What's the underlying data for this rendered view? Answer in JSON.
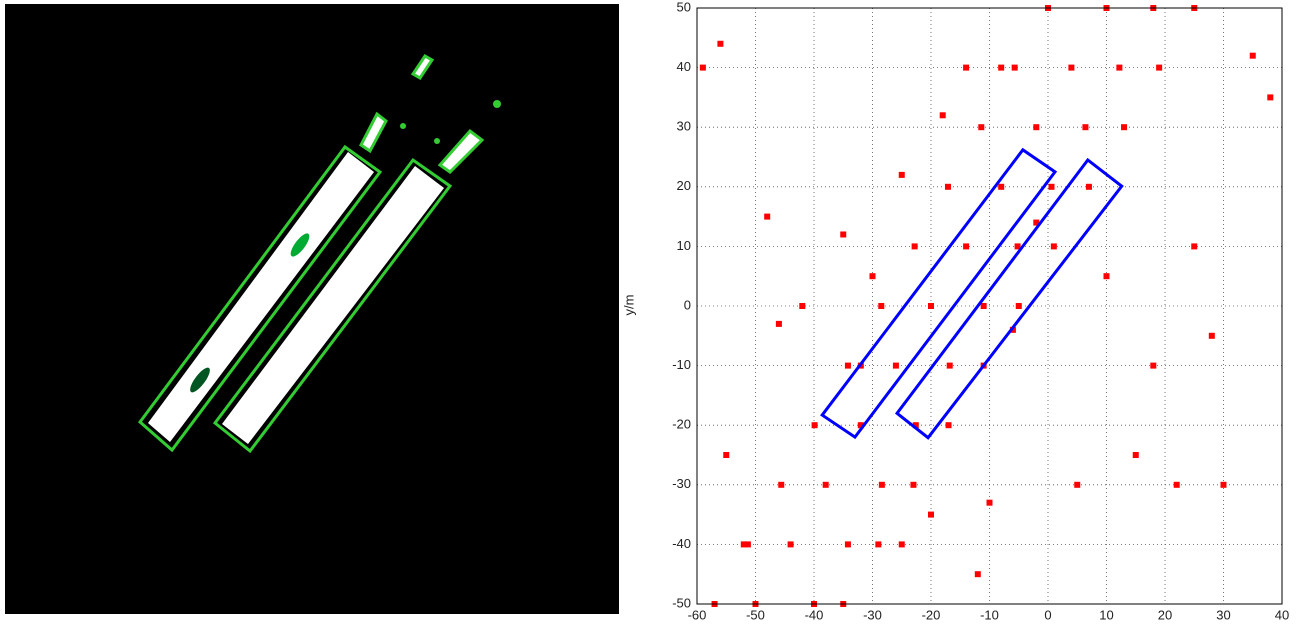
{
  "chart_data": {
    "type": "scatter",
    "y_label": "y/m",
    "xlim": [
      -60,
      40
    ],
    "xticks": [
      -60,
      -50,
      -40,
      -30,
      -20,
      -10,
      0,
      10,
      20,
      30,
      40
    ],
    "ylim": [
      -50,
      50
    ],
    "yticks": [
      -50,
      -40,
      -30,
      -20,
      -10,
      0,
      10,
      20,
      30,
      40,
      50
    ],
    "grid": true,
    "color": "#ff0000",
    "x": [
      -57,
      -51.3,
      -45.6,
      -39.9,
      -34.2,
      -28.5,
      -22.8,
      -17.1,
      -11.4,
      -5.7,
      0,
      -50,
      -44,
      -38,
      -32,
      -26,
      -20,
      -14,
      -8,
      -2,
      4,
      10,
      -40,
      -34.2,
      -28.4,
      -22.6,
      -16.8,
      -11,
      -5.2,
      0.6,
      6.4,
      12.2,
      18,
      -35,
      -29,
      -23,
      -17,
      -11,
      -5,
      1,
      7,
      13,
      19,
      25,
      -56,
      -59,
      -46,
      -42,
      -35,
      -30,
      -25,
      -18,
      -8,
      -14,
      -20,
      -12,
      -10,
      -25,
      5,
      15,
      22,
      30,
      35,
      38,
      28,
      18,
      -55,
      -52,
      -32,
      -48,
      -2,
      -6,
      10,
      25
    ],
    "values": [
      -50,
      -40,
      -30,
      -20,
      -10,
      0,
      10,
      20,
      30,
      40,
      50,
      -50,
      -40,
      -30,
      -20,
      -10,
      0,
      10,
      20,
      30,
      40,
      50,
      -50,
      -40,
      -30,
      -20,
      -10,
      0,
      10,
      20,
      30,
      40,
      50,
      -50,
      -40,
      -30,
      -20,
      -10,
      0,
      10,
      20,
      30,
      40,
      50,
      44,
      40,
      -3,
      0,
      12,
      5,
      22,
      32,
      40,
      40,
      -35,
      -45,
      -33,
      -40,
      -30,
      -25,
      -30,
      -30,
      42,
      35,
      -5,
      -10,
      -25,
      -40,
      -10,
      15,
      14,
      -4,
      5,
      10
    ],
    "boxes": [
      {
        "color": "#0000ff",
        "corners": [
          [
            -38.6,
            -18.3
          ],
          [
            -33.0,
            -22.0
          ],
          [
            1.2,
            22.5
          ],
          [
            -4.3,
            26.2
          ]
        ]
      },
      {
        "color": "#0000ff",
        "corners": [
          [
            -25.8,
            -18.0
          ],
          [
            -20.5,
            -22.1
          ],
          [
            12.6,
            20.1
          ],
          [
            6.8,
            24.5
          ]
        ]
      }
    ]
  }
}
